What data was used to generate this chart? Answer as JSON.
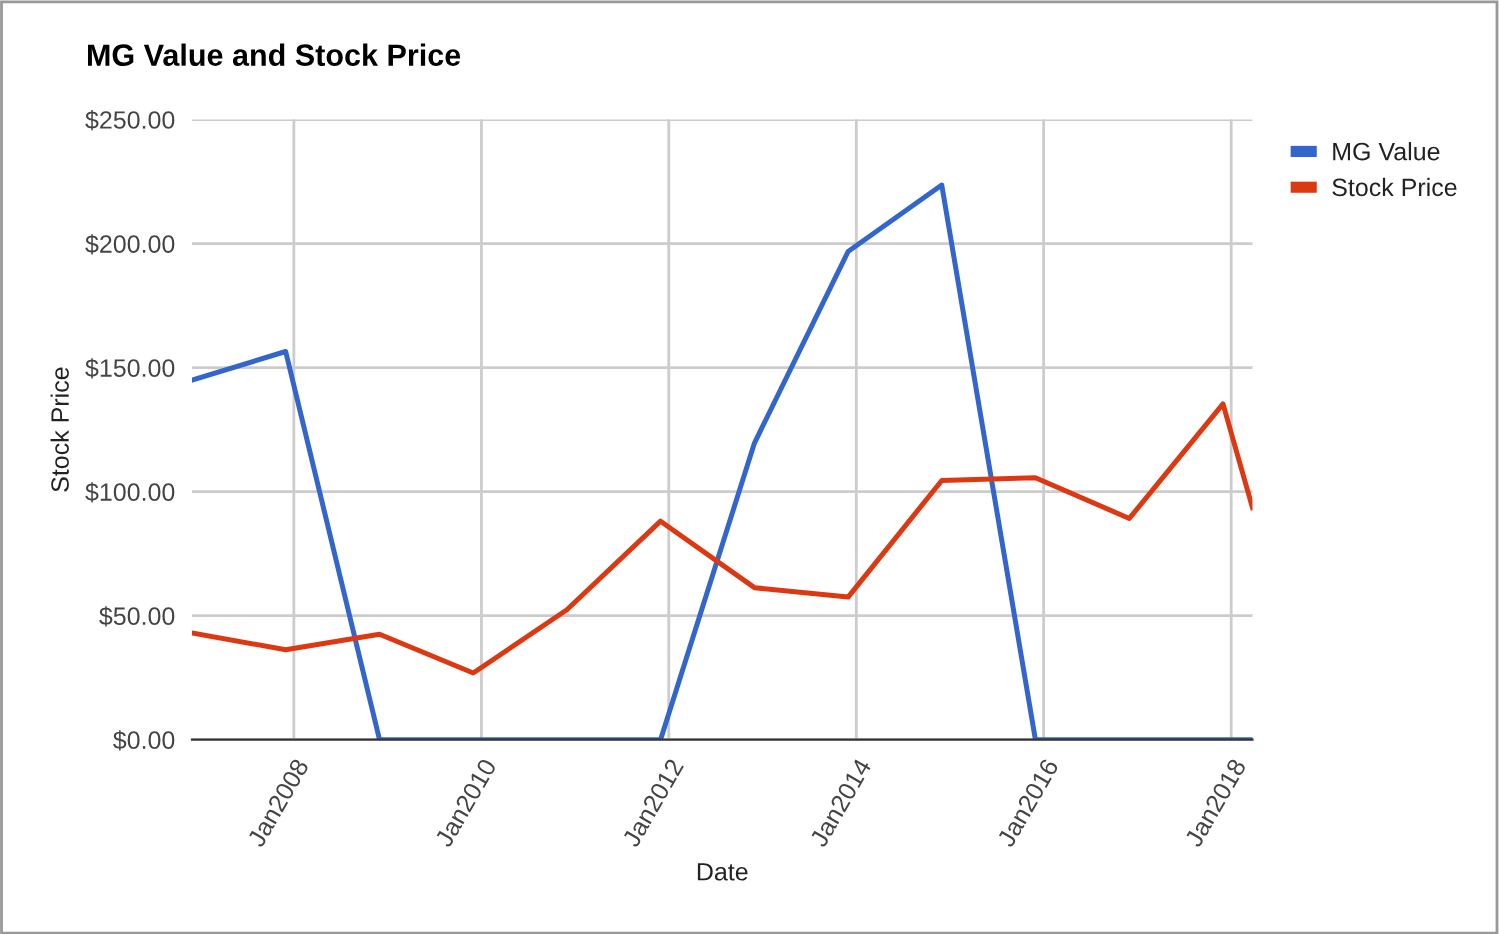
{
  "chart_data": {
    "type": "line",
    "title": "MG Value and Stock Price",
    "xlabel": "Date",
    "ylabel": "Stock Price",
    "x": [
      "2006-11-30",
      "2007-11-30",
      "2008-11-30",
      "2009-11-30",
      "2010-11-30",
      "2011-11-30",
      "2012-11-30",
      "2013-11-30",
      "2014-11-30",
      "2015-11-30",
      "2016-11-30",
      "2017-11-30",
      "2018-03-25"
    ],
    "series": [
      {
        "name": "MG Value",
        "color": "#3366cc",
        "values": [
          145,
          156.5,
          0,
          0,
          0,
          0,
          119.6,
          196.8,
          223.6,
          0,
          0,
          0,
          0
        ]
      },
      {
        "name": "Stock Price",
        "color": "#dc3912",
        "values": [
          43,
          36.3,
          42.5,
          26.9,
          52.4,
          88.1,
          61.3,
          57.5,
          104.5,
          105.6,
          89.2,
          135.4,
          93.5
        ]
      }
    ],
    "xlim": [
      "2006-11-30",
      "2018-03-25"
    ],
    "xticks": [
      {
        "value": "2008-01-01",
        "label": "Jan2008"
      },
      {
        "value": "2010-01-01",
        "label": "Jan2010"
      },
      {
        "value": "2012-01-01",
        "label": "Jan2012"
      },
      {
        "value": "2014-01-01",
        "label": "Jan2014"
      },
      {
        "value": "2016-01-01",
        "label": "Jan2016"
      },
      {
        "value": "2018-01-01",
        "label": "Jan2018"
      }
    ],
    "ylim": [
      0,
      250
    ],
    "yticks": [
      {
        "value": 0,
        "label": "$0.00"
      },
      {
        "value": 50,
        "label": "$50.00"
      },
      {
        "value": 100,
        "label": "$100.00"
      },
      {
        "value": 150,
        "label": "$150.00"
      },
      {
        "value": 200,
        "label": "$200.00"
      },
      {
        "value": 250,
        "label": "$250.00"
      }
    ],
    "grid": true,
    "legend": "top right",
    "marker": "none",
    "line_style": "solid"
  }
}
